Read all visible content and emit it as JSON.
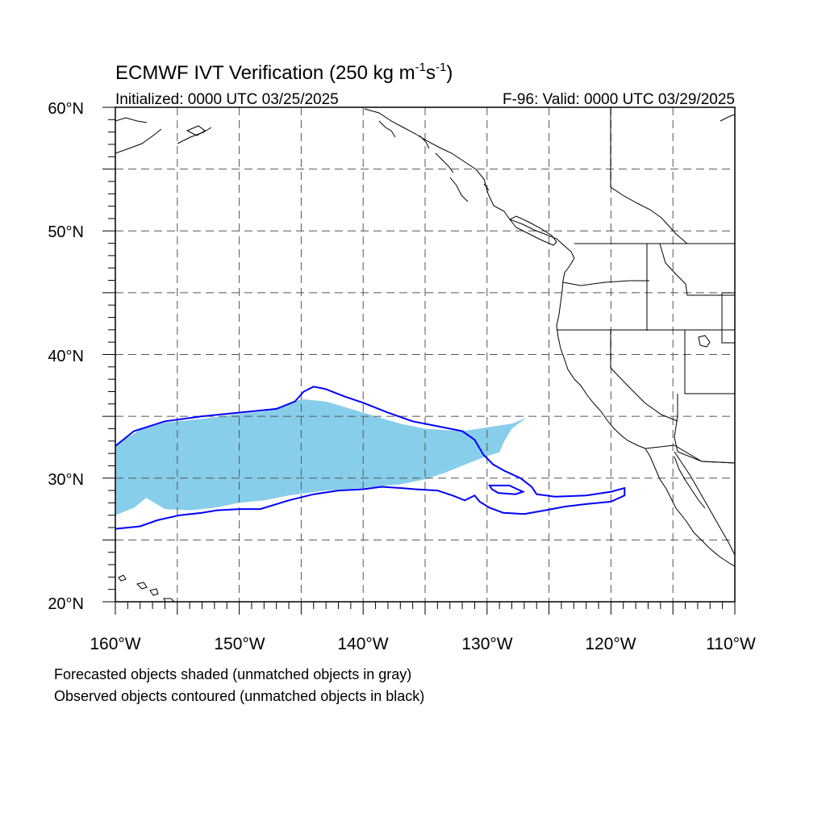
{
  "title": {
    "main": "ECMWF IVT Verification (250 kg m",
    "exp1": "-1",
    "mid": "s",
    "exp2": "-1",
    "close": ")"
  },
  "subtitle_left": "Initialized: 0000 UTC 03/25/2025",
  "subtitle_right": "F-96: Valid: 0000 UTC 03/29/2025",
  "lat_labels": [
    "60°N",
    "50°N",
    "40°N",
    "30°N",
    "20°N"
  ],
  "lon_labels": [
    "160°W",
    "150°W",
    "140°W",
    "130°W",
    "120°W",
    "110°W"
  ],
  "footnotes": [
    "Forecasted objects shaded (unmatched objects in gray)",
    "Observed objects contoured (unmatched objects in black)"
  ],
  "colors": {
    "forecast_fill": "#87ceeb",
    "observed_contour": "#0000ff",
    "coastline": "#000000",
    "grid": "#555555"
  },
  "map_extent": {
    "lon_min": -160,
    "lon_max": -110,
    "lat_min": 20,
    "lat_max": 60
  },
  "grid": {
    "lon_step_deg": 5,
    "lat_step_deg": 5,
    "style": "dashed"
  },
  "forecast_object": {
    "name": "forecast-ivt-object",
    "coords": [
      [
        -160,
        32.7
      ],
      [
        -158,
        33.9
      ],
      [
        -156,
        34.5
      ],
      [
        -153,
        34.8
      ],
      [
        -150,
        35.2
      ],
      [
        -148,
        35.4
      ],
      [
        -146,
        36
      ],
      [
        -145,
        36.4
      ],
      [
        -143,
        36.2
      ],
      [
        -141,
        35.6
      ],
      [
        -139,
        35
      ],
      [
        -137,
        34.4
      ],
      [
        -135,
        34
      ],
      [
        -132,
        33.8
      ],
      [
        -130,
        34.1
      ],
      [
        -128,
        34.4
      ],
      [
        -126.8,
        34.9
      ],
      [
        -127.2,
        34.6
      ],
      [
        -128,
        34
      ],
      [
        -128.6,
        33
      ],
      [
        -129,
        32.1
      ],
      [
        -130,
        31.8
      ],
      [
        -132,
        31
      ],
      [
        -133.5,
        30.4
      ],
      [
        -135,
        29.9
      ],
      [
        -137,
        29.5
      ],
      [
        -140,
        29.2
      ],
      [
        -143,
        29
      ],
      [
        -146,
        28.6
      ],
      [
        -148,
        28.2
      ],
      [
        -150,
        28
      ],
      [
        -152,
        27.6
      ],
      [
        -154,
        27.4
      ],
      [
        -156,
        27.5
      ],
      [
        -157.5,
        28.4
      ],
      [
        -158.5,
        27.6
      ],
      [
        -160,
        27
      ]
    ]
  },
  "observed_object": {
    "name": "observed-ivt-contour",
    "coords": [
      [
        -160,
        32.6
      ],
      [
        -158.5,
        33.8
      ],
      [
        -156,
        34.6
      ],
      [
        -153,
        35
      ],
      [
        -150,
        35.3
      ],
      [
        -147,
        35.6
      ],
      [
        -145.5,
        36.2
      ],
      [
        -144.8,
        37
      ],
      [
        -144,
        37.4
      ],
      [
        -143,
        37.2
      ],
      [
        -141.5,
        36.6
      ],
      [
        -140,
        36.1
      ],
      [
        -138,
        35.3
      ],
      [
        -136,
        34.6
      ],
      [
        -134,
        34.2
      ],
      [
        -132,
        33.8
      ],
      [
        -131,
        33.1
      ],
      [
        -130.3,
        31.9
      ],
      [
        -129.5,
        31.1
      ],
      [
        -128.6,
        30.6
      ],
      [
        -127.3,
        30
      ],
      [
        -126.4,
        29.3
      ],
      [
        -126,
        28.7
      ],
      [
        -124.5,
        28.5
      ],
      [
        -122,
        28.6
      ],
      [
        -120,
        28.9
      ],
      [
        -118.9,
        29.2
      ],
      [
        -118.9,
        28.6
      ],
      [
        -120,
        28.1
      ],
      [
        -122,
        27.9
      ],
      [
        -123.7,
        27.7
      ],
      [
        -125.3,
        27.4
      ],
      [
        -127,
        27.1
      ],
      [
        -128.7,
        27.2
      ],
      [
        -129.8,
        27.6
      ],
      [
        -130.6,
        28.1
      ],
      [
        -131,
        28.6
      ],
      [
        -131.8,
        28.2
      ],
      [
        -132.8,
        28.6
      ],
      [
        -134,
        29
      ],
      [
        -135.8,
        29.1
      ],
      [
        -137,
        29.2
      ],
      [
        -138.5,
        29.3
      ],
      [
        -140,
        29.1
      ],
      [
        -142,
        29
      ],
      [
        -144,
        28.7
      ],
      [
        -146,
        28.2
      ],
      [
        -148.3,
        27.5
      ],
      [
        -150,
        27.5
      ],
      [
        -151.8,
        27.4
      ],
      [
        -153,
        27.2
      ],
      [
        -154.8,
        27
      ],
      [
        -156.6,
        26.6
      ],
      [
        -158,
        26.1
      ],
      [
        -160,
        25.9
      ]
    ],
    "island_loop": [
      [
        -129.8,
        29.4
      ],
      [
        -128.2,
        29.4
      ],
      [
        -127.1,
        28.9
      ],
      [
        -127.7,
        28.7
      ],
      [
        -129.1,
        28.8
      ],
      [
        -129.6,
        29.1
      ],
      [
        -129.8,
        29.4
      ]
    ]
  }
}
